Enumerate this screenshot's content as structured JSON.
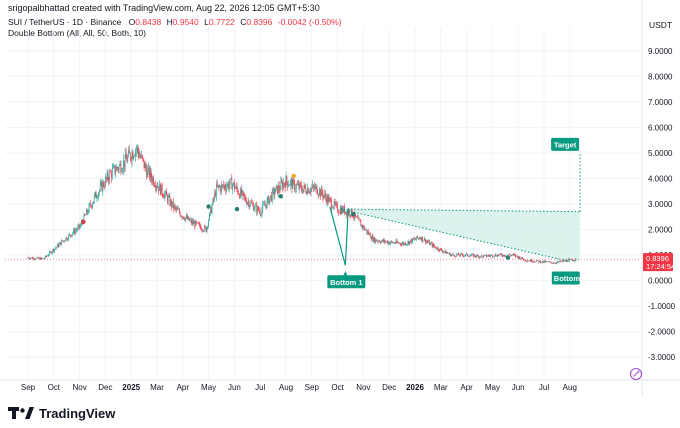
{
  "header": {
    "credit": "srigopalbhattad created with TradingView.com, Aug 22, 2026 12:05 GMT+5:30",
    "legend": {
      "symbol": "SUI / TetherUS · 1D · Binance",
      "o_label": "O",
      "o": "0.8438",
      "h_label": "H",
      "h": "0.9540",
      "l_label": "L",
      "l": "0.7722",
      "c_label": "C",
      "c": "0.8396",
      "change": "-0.0042 (-0.50%)"
    },
    "indicator": "Double Bottom (All, All, 50, Both, 10)",
    "currency": "USDT"
  },
  "brand": {
    "name": "TradingView"
  },
  "pattern": {
    "bottom1_label": "Bottom 1",
    "bottom2_label": "Bottom",
    "target_label": "Target"
  },
  "price_label": {
    "price": "0.8396",
    "countdown": "17:24:54"
  },
  "colors": {
    "up": "#26a69a",
    "down": "#f23645",
    "pattern": "#089981",
    "fill": "#d6f0ea",
    "axis_text": "#131722",
    "grid": "#f0f3fa"
  },
  "chart_data": {
    "type": "candlestick",
    "title": "SUI / TetherUS · 1D · Binance",
    "y_ticks": [
      "9.0000",
      "8.0000",
      "7.0000",
      "6.0000",
      "5.0000",
      "4.0000",
      "3.0000",
      "2.0000",
      "1.0000",
      "0.0000",
      "-1.0000",
      "-2.0000",
      "-3.0000"
    ],
    "ylim": [
      -3.5,
      9.5
    ],
    "x_ticks": [
      {
        "label": "Sep",
        "bold": false
      },
      {
        "label": "Oct",
        "bold": false
      },
      {
        "label": "Nov",
        "bold": false
      },
      {
        "label": "Dec",
        "bold": false
      },
      {
        "label": "2025",
        "bold": true
      },
      {
        "label": "Mar",
        "bold": false
      },
      {
        "label": "Apr",
        "bold": false
      },
      {
        "label": "May",
        "bold": false
      },
      {
        "label": "Jun",
        "bold": false
      },
      {
        "label": "Jul",
        "bold": false
      },
      {
        "label": "Aug",
        "bold": false
      },
      {
        "label": "Sep",
        "bold": false
      },
      {
        "label": "Oct",
        "bold": false
      },
      {
        "label": "Nov",
        "bold": false
      },
      {
        "label": "Dec",
        "bold": false
      },
      {
        "label": "2026",
        "bold": true
      },
      {
        "label": "Mar",
        "bold": false
      },
      {
        "label": "Apr",
        "bold": false
      },
      {
        "label": "May",
        "bold": false
      },
      {
        "label": "Jun",
        "bold": false
      },
      {
        "label": "Jul",
        "bold": false
      },
      {
        "label": "Aug",
        "bold": false
      }
    ],
    "price_anchors": [
      {
        "m": 0,
        "p": 0.9
      },
      {
        "m": 0.6,
        "p": 0.85
      },
      {
        "m": 1.4,
        "p": 1.6
      },
      {
        "m": 2.0,
        "p": 2.1
      },
      {
        "m": 2.6,
        "p": 3.3
      },
      {
        "m": 3.2,
        "p": 4.2
      },
      {
        "m": 3.7,
        "p": 4.6
      },
      {
        "m": 4.2,
        "p": 5.2
      },
      {
        "m": 4.6,
        "p": 4.3
      },
      {
        "m": 5.2,
        "p": 3.5
      },
      {
        "m": 5.7,
        "p": 2.8
      },
      {
        "m": 6.3,
        "p": 2.3
      },
      {
        "m": 6.9,
        "p": 2.0
      },
      {
        "m": 7.3,
        "p": 3.6
      },
      {
        "m": 7.9,
        "p": 3.8
      },
      {
        "m": 8.4,
        "p": 3.2
      },
      {
        "m": 9.0,
        "p": 2.7
      },
      {
        "m": 9.5,
        "p": 3.4
      },
      {
        "m": 10.0,
        "p": 3.9
      },
      {
        "m": 10.6,
        "p": 3.6
      },
      {
        "m": 11.2,
        "p": 3.6
      },
      {
        "m": 11.7,
        "p": 3.1
      },
      {
        "m": 12.0,
        "p": 2.8
      },
      {
        "m": 12.5,
        "p": 2.7
      },
      {
        "m": 12.9,
        "p": 2.2
      },
      {
        "m": 13.4,
        "p": 1.6
      },
      {
        "m": 14.0,
        "p": 1.5
      },
      {
        "m": 14.6,
        "p": 1.45
      },
      {
        "m": 15.2,
        "p": 1.7
      },
      {
        "m": 15.8,
        "p": 1.3
      },
      {
        "m": 16.4,
        "p": 1.0
      },
      {
        "m": 17.0,
        "p": 1.0
      },
      {
        "m": 17.6,
        "p": 0.95
      },
      {
        "m": 18.2,
        "p": 1.0
      },
      {
        "m": 18.8,
        "p": 1.0
      },
      {
        "m": 19.3,
        "p": 0.8
      },
      {
        "m": 19.8,
        "p": 0.75
      },
      {
        "m": 20.4,
        "p": 0.7
      },
      {
        "m": 21.0,
        "p": 0.8
      },
      {
        "m": 21.25,
        "p": 0.84
      }
    ],
    "current_price": 0.8396,
    "double_bottom": {
      "bottom1": {
        "m": 12.3,
        "p": 0.6
      },
      "neckline_start": {
        "m": 12.1,
        "p": 2.8
      },
      "neckline_end": {
        "m": 21.4,
        "p": 2.7
      },
      "pattern_start": {
        "m": 11.7,
        "p": 2.9
      },
      "bottom2": {
        "m": 21.0,
        "p": 0.75
      },
      "target": {
        "m": 21.4,
        "p": 5.0
      }
    },
    "markers": [
      {
        "m": 2.15,
        "p": 2.3,
        "color": "down"
      },
      {
        "m": 7.0,
        "p": 2.9,
        "color": "up"
      },
      {
        "m": 8.1,
        "p": 2.8,
        "color": "up"
      },
      {
        "m": 9.8,
        "p": 3.3,
        "color": "up"
      },
      {
        "m": 10.3,
        "p": 4.1,
        "color": "orange"
      },
      {
        "m": 12.6,
        "p": 2.6,
        "color": "up"
      },
      {
        "m": 18.6,
        "p": 0.9,
        "color": "up"
      }
    ]
  }
}
